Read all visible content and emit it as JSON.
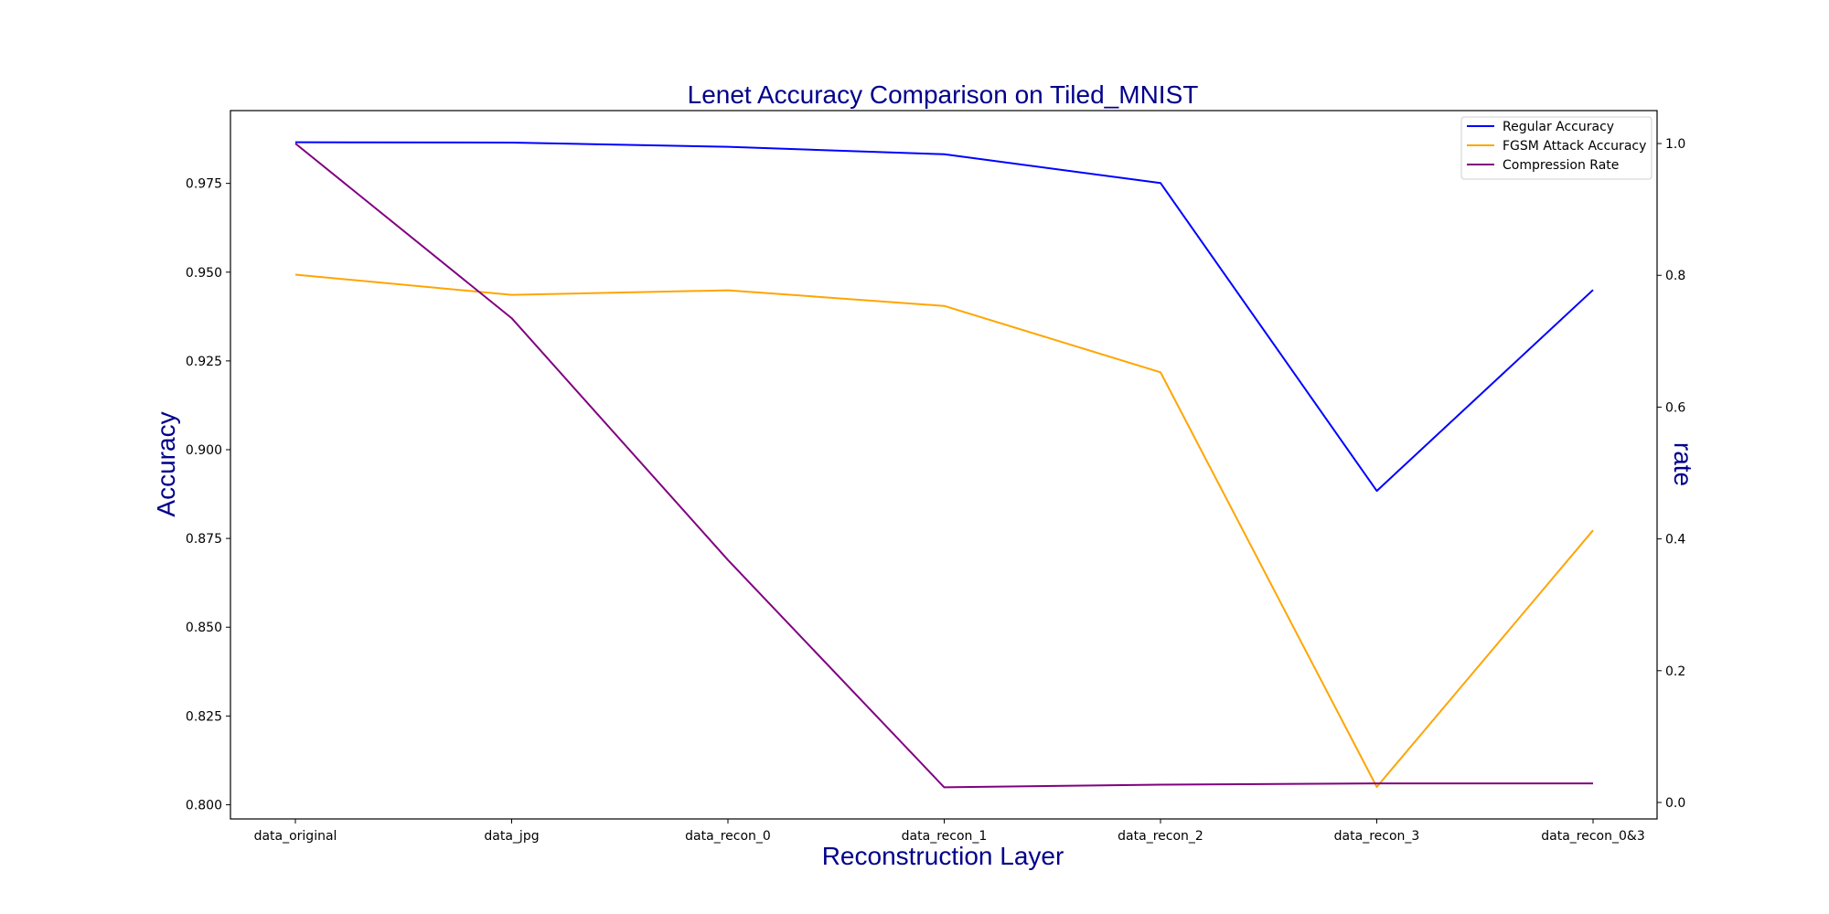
{
  "chart_data": {
    "type": "line",
    "title": "Lenet Accuracy Comparison on Tiled_MNIST",
    "xlabel": "Reconstruction Layer",
    "ylabel": "Accuracy",
    "y2label": "rate",
    "categories": [
      "data_original",
      "data_jpg",
      "data_recon_0",
      "data_recon_1",
      "data_recon_2",
      "data_recon_3",
      "data_recon_0&3"
    ],
    "ylim": [
      0.796,
      0.9955
    ],
    "y2lim": [
      -0.025,
      1.05
    ],
    "yticks": [
      0.8,
      0.825,
      0.85,
      0.875,
      0.9,
      0.925,
      0.95,
      0.975
    ],
    "y2ticks": [
      0.0,
      0.2,
      0.4,
      0.6,
      0.8,
      1.0
    ],
    "grid": false,
    "legend_position": "top-right",
    "series": [
      {
        "name": "Regular Accuracy",
        "axis": "left",
        "color": "#0000ff",
        "values": [
          0.9866,
          0.9865,
          0.9853,
          0.9832,
          0.9751,
          0.8884,
          0.945
        ]
      },
      {
        "name": "FGSM Attack Accuracy",
        "axis": "left",
        "color": "#ffa500",
        "values": [
          0.9493,
          0.9436,
          0.9449,
          0.9405,
          0.9218,
          0.805,
          0.8773
        ]
      },
      {
        "name": "Compression Rate",
        "axis": "right",
        "color": "#800080",
        "values": [
          1.0,
          0.735,
          0.368,
          0.023,
          0.027,
          0.029,
          0.029
        ]
      }
    ]
  }
}
